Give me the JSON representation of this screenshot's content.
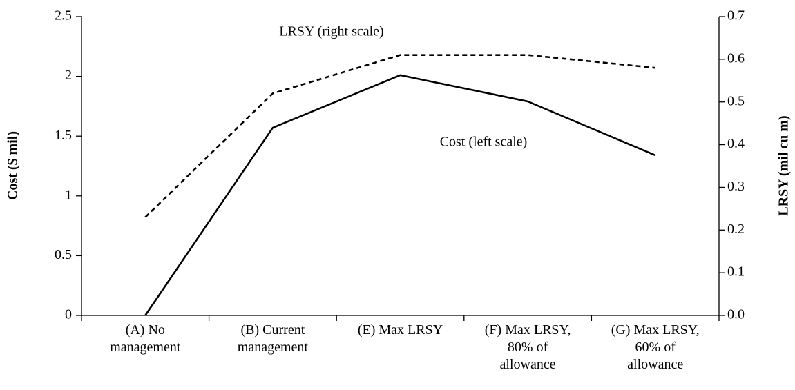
{
  "chart_data": {
    "type": "line",
    "categories": [
      "(A) No\nmanagement",
      "(B) Current\nmanagement",
      "(E) Max LRSY",
      "(F) Max LRSY,\n80% of\nallowance",
      "(G) Max LRSY,\n60% of\nallowance"
    ],
    "ylabel": "Cost ($ mil)",
    "y2label": "LRSY (mil cu m)",
    "ylim": [
      0,
      2.5
    ],
    "yticks": [
      0,
      0.5,
      1,
      1.5,
      2,
      2.5
    ],
    "y2lim": [
      0,
      0.7
    ],
    "y2ticks": [
      {
        "value": 0,
        "label": "0.0"
      },
      0.1,
      0.2,
      0.3,
      0.4,
      0.5,
      0.6,
      0.7
    ],
    "series": [
      {
        "name": "Cost (left scale)",
        "color": "#000000",
        "style": "solid",
        "values": [
          0,
          1.57,
          2.01,
          1.79,
          1.34
        ]
      },
      {
        "name": "LRSY (right scale)",
        "color": "#000000",
        "style": "dashed",
        "axis": "y2",
        "values": [
          0.23,
          0.52,
          0.61,
          0.61,
          0.58
        ]
      }
    ]
  }
}
